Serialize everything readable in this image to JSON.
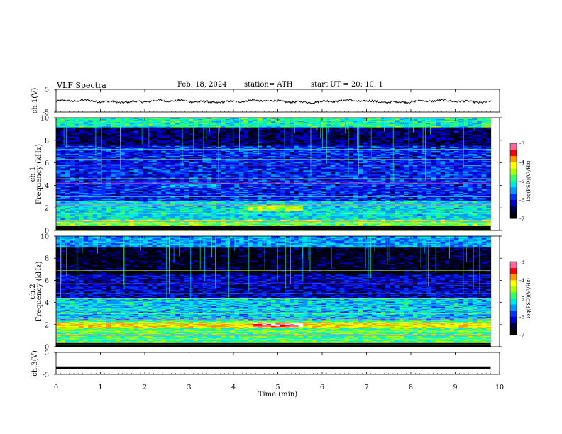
{
  "header": {
    "title": "VLF  Spectra",
    "date": "Feb. 18, 2024",
    "station": "station= ATH",
    "start": "start  UT  =    20: 10: 1"
  },
  "chart_data": [
    {
      "type": "line",
      "ylabel": "ch.1(V)",
      "ylim": [
        -5,
        5
      ],
      "yticks": [
        "5",
        "-5"
      ],
      "series": [
        {
          "description": "waveform trace around -0.3 V",
          "mean": -0.3,
          "color": "#000000"
        }
      ]
    },
    {
      "type": "heatmap",
      "ylabel_lines": [
        "ch.1",
        "Frequency  (kHz)"
      ],
      "ylim": [
        0,
        10
      ],
      "yticks": [
        "0",
        "2",
        "4",
        "6",
        "8",
        "10"
      ],
      "colorbar": {
        "label": "log(PSD)(V²/Hz)",
        "range": [
          -7,
          -3
        ],
        "ticks": [
          "-3",
          "-4",
          "-5",
          "-6",
          "-7"
        ]
      }
    },
    {
      "type": "heatmap",
      "ylabel_lines": [
        "ch.2",
        "Frequency  (kHz)"
      ],
      "ylim": [
        0,
        10
      ],
      "yticks": [
        "0",
        "2",
        "4",
        "6",
        "8",
        "10"
      ],
      "colorbar": {
        "label": "log(PSD)(V²/Hz)",
        "range": [
          -7,
          -3
        ],
        "ticks": [
          "-3",
          "-4",
          "-5",
          "-6",
          "-7"
        ]
      }
    },
    {
      "type": "line",
      "ylabel": "ch.3(V)",
      "ylim": [
        -5,
        5
      ],
      "yticks": [
        "5",
        "-5"
      ],
      "series": [
        {
          "description": "flat trace",
          "mean": -2.0,
          "color": "#000000"
        }
      ]
    }
  ],
  "xaxis": {
    "label": "Time  (min)",
    "xlim": [
      0,
      10
    ],
    "ticks": [
      "0",
      "1",
      "2",
      "3",
      "4",
      "5",
      "6",
      "7",
      "8",
      "9",
      "10"
    ],
    "data_end": 9.8
  },
  "colormap": [
    "#000000",
    "#000044",
    "#0000cc",
    "#0033ff",
    "#0099ff",
    "#00e6e6",
    "#33ff66",
    "#aaff00",
    "#ffff00",
    "#ff9900",
    "#ff0000",
    "#ff6699",
    "#ffffff"
  ]
}
